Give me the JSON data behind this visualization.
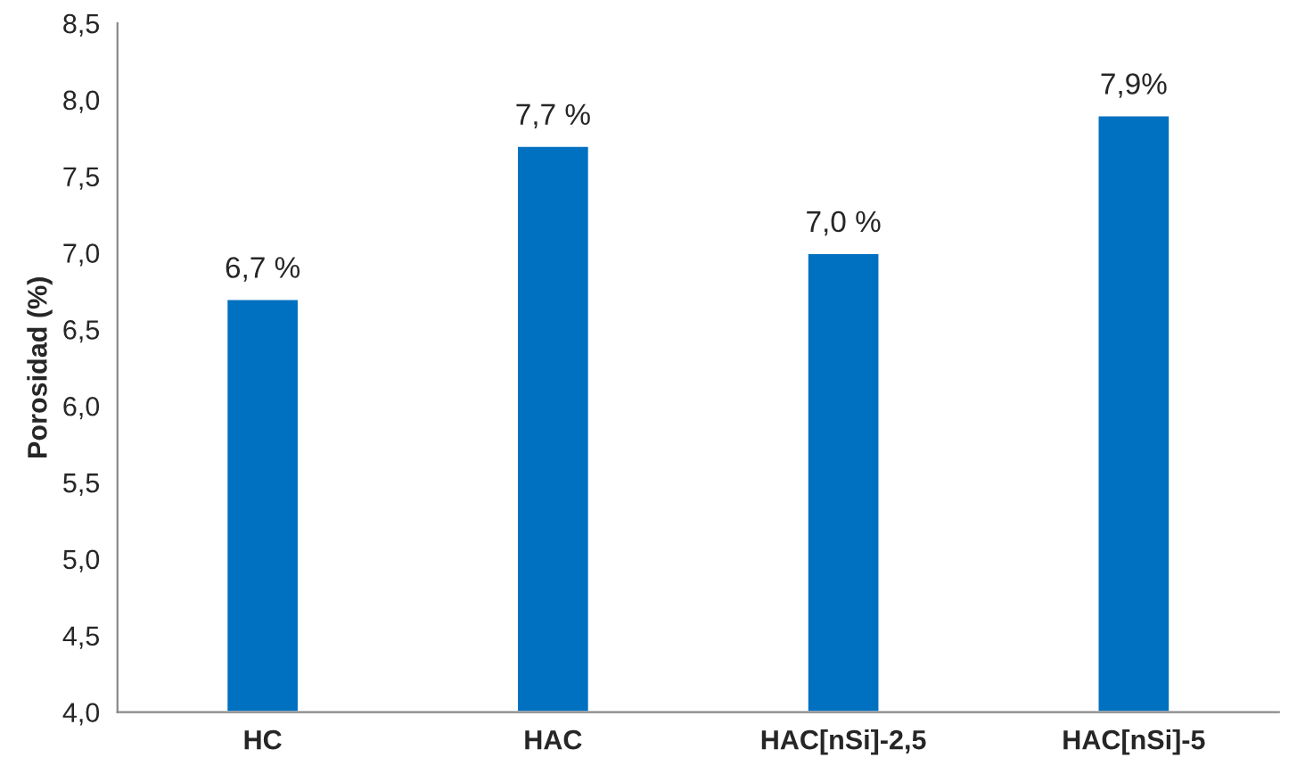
{
  "chart_data": {
    "type": "bar",
    "ylabel": "Porosidad (%)",
    "categories": [
      "HC",
      "HAC",
      "HAC[nSi]-2,5",
      "HAC[nSi]-5"
    ],
    "values": [
      6.7,
      7.7,
      7.0,
      7.9
    ],
    "value_labels": [
      "6,7 %",
      "7,7 %",
      "7,0 %",
      "7,9%"
    ],
    "color": "#0070c0",
    "ylim": [
      4.0,
      8.5
    ],
    "yticks": [
      {
        "value": 4.0,
        "label": "4,0"
      },
      {
        "value": 4.5,
        "label": "4,5"
      },
      {
        "value": 5.0,
        "label": "5,0"
      },
      {
        "value": 5.5,
        "label": "5,5"
      },
      {
        "value": 6.0,
        "label": "6,0"
      },
      {
        "value": 6.5,
        "label": "6,5"
      },
      {
        "value": 7.0,
        "label": "7,0"
      },
      {
        "value": 7.5,
        "label": "7,5"
      },
      {
        "value": 8.0,
        "label": "8,0"
      },
      {
        "value": 8.5,
        "label": "8,5"
      }
    ],
    "grid": false,
    "legend": false
  }
}
